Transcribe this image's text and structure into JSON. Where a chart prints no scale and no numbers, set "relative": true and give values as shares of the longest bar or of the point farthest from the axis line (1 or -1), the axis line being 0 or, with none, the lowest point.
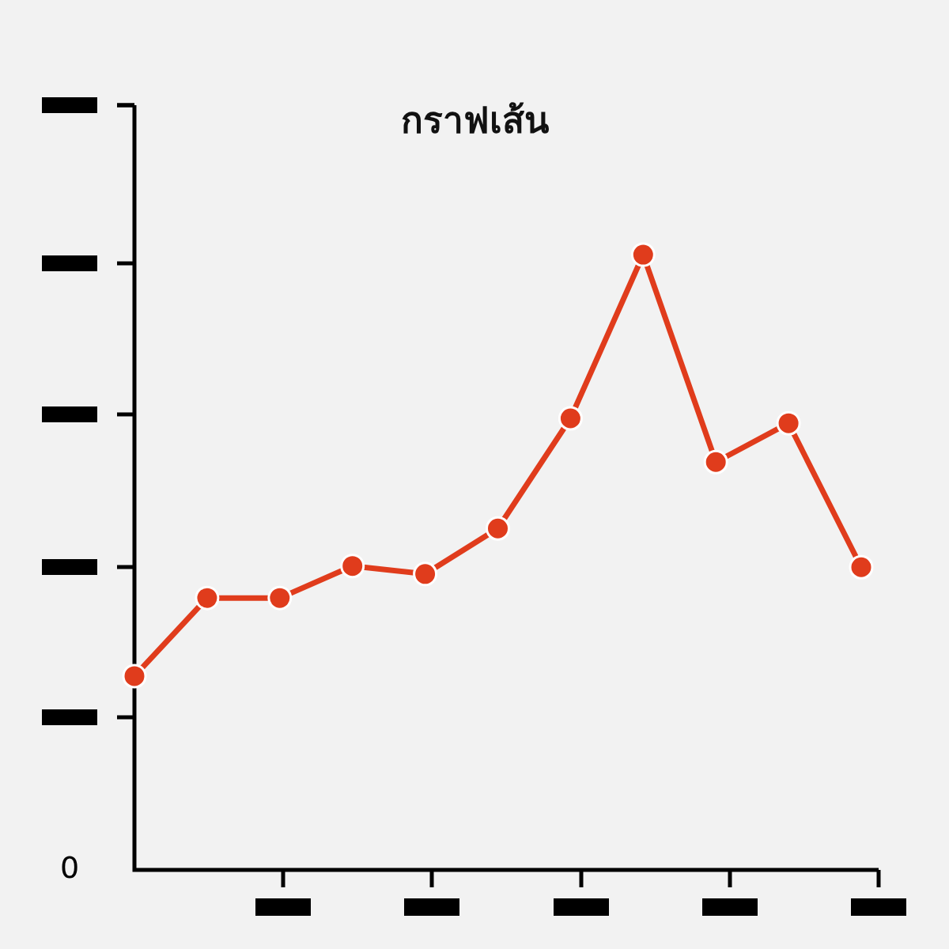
{
  "chart_data": {
    "type": "line",
    "title": "กราฟเส้น",
    "relative": true,
    "marker": "circle",
    "line_style": "solid",
    "categories": [
      null,
      null,
      null,
      null,
      null,
      null,
      null,
      null,
      null,
      null,
      null
    ],
    "series": [
      {
        "color": "#e03c1c",
        "values": [
          0.315,
          0.442,
          0.442,
          0.494,
          0.481,
          0.555,
          0.734,
          1,
          0.663,
          0.726,
          0.492
        ]
      }
    ],
    "annotations": [
      "0"
    ]
  }
}
